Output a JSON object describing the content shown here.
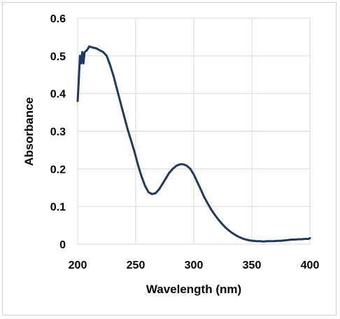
{
  "chart_data": {
    "type": "line",
    "title": "",
    "xlabel": "Wavelength (nm)",
    "ylabel": "Absorbance",
    "xlim": [
      200,
      400
    ],
    "ylim": [
      0,
      0.6
    ],
    "x_ticks": [
      200,
      250,
      300,
      350,
      400
    ],
    "x_tick_labels": [
      "200",
      "250",
      "300",
      "350",
      "400"
    ],
    "y_ticks": [
      0,
      0.1,
      0.2,
      0.3,
      0.4,
      0.5,
      0.6
    ],
    "y_tick_labels": [
      "0",
      "0.1",
      "0.2",
      "0.3",
      "0.4",
      "0.5",
      "0.6"
    ],
    "grid": "major gridlines on both axes",
    "legend": "none",
    "line_color": "#1f3a5f",
    "grid_color": "#d9d9d9",
    "series": [
      {
        "x": [
          200,
          201,
          202,
          203,
          204,
          205,
          206,
          208,
          210,
          213,
          216,
          219,
          222,
          225,
          228,
          231,
          234,
          237,
          240,
          243,
          246,
          249,
          252,
          255,
          258,
          261,
          264,
          267,
          270,
          273,
          276,
          279,
          282,
          285,
          288,
          291,
          294,
          297,
          300,
          303,
          306,
          309,
          312,
          315,
          318,
          321,
          324,
          327,
          330,
          333,
          336,
          339,
          342,
          345,
          348,
          351,
          354,
          357,
          360,
          363,
          366,
          369,
          372,
          375,
          378,
          381,
          384,
          387,
          390,
          393,
          396,
          399,
          400
        ],
        "y": [
          0.38,
          0.44,
          0.5,
          0.48,
          0.51,
          0.48,
          0.51,
          0.515,
          0.525,
          0.522,
          0.52,
          0.515,
          0.51,
          0.5,
          0.475,
          0.445,
          0.41,
          0.375,
          0.34,
          0.305,
          0.275,
          0.245,
          0.21,
          0.18,
          0.155,
          0.138,
          0.133,
          0.135,
          0.145,
          0.16,
          0.175,
          0.19,
          0.2,
          0.208,
          0.212,
          0.212,
          0.208,
          0.2,
          0.185,
          0.165,
          0.145,
          0.125,
          0.108,
          0.092,
          0.078,
          0.066,
          0.055,
          0.045,
          0.037,
          0.03,
          0.024,
          0.019,
          0.015,
          0.012,
          0.01,
          0.009,
          0.008,
          0.008,
          0.007,
          0.008,
          0.008,
          0.008,
          0.009,
          0.009,
          0.01,
          0.011,
          0.012,
          0.012,
          0.013,
          0.013,
          0.014,
          0.014,
          0.016
        ]
      }
    ]
  }
}
